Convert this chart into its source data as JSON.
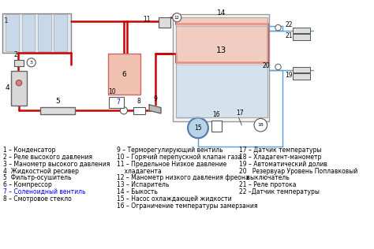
{
  "title": "",
  "bg_color": "#ffffff",
  "legend_col1": [
    "1 – Конденсатор",
    "2 – Реле высокого давления",
    "3 – Манометр высокого давления",
    "4  Жидкостной ресивер",
    "5  Фильтр-осушитель",
    "6 – Компрессор",
    "7 – Соленоидный вентиль",
    "8 – Смотровое стекло"
  ],
  "legend_col2": [
    "9 – Терморегулирующий вентиль",
    "10 – Горячий перепускной клапан газа",
    "11 – Предельное Низкое давление",
    "    хладагента",
    "12 – Манометр низкого давления фреона",
    "13 – Испаритель",
    "14 – Быкость",
    "15 – Насос охлаждающей жидкости",
    "16 – Ограничение температуры замерзания"
  ],
  "legend_col3": [
    "17 – Датчик температуры",
    "18 – Хладагент-манометр",
    "19 – Автоматический долив",
    "20   Резервуар Уровень Поплавковый",
    "    выключатель",
    "21 – Реле протока",
    "22 –Датчик температуры"
  ],
  "legend_col1_colors": [
    "black",
    "black",
    "black",
    "black",
    "black",
    "black",
    "blue",
    "black"
  ],
  "line_color_red": "#cc0000",
  "line_color_blue": "#5b9bd5",
  "line_color_gray": "#808080",
  "fill_red": "#e8a090",
  "fill_blue": "#b8d4e8",
  "fill_pink": "#f0c0b0",
  "font_size_legend": 5.5,
  "font_size_numbers": 6.5
}
